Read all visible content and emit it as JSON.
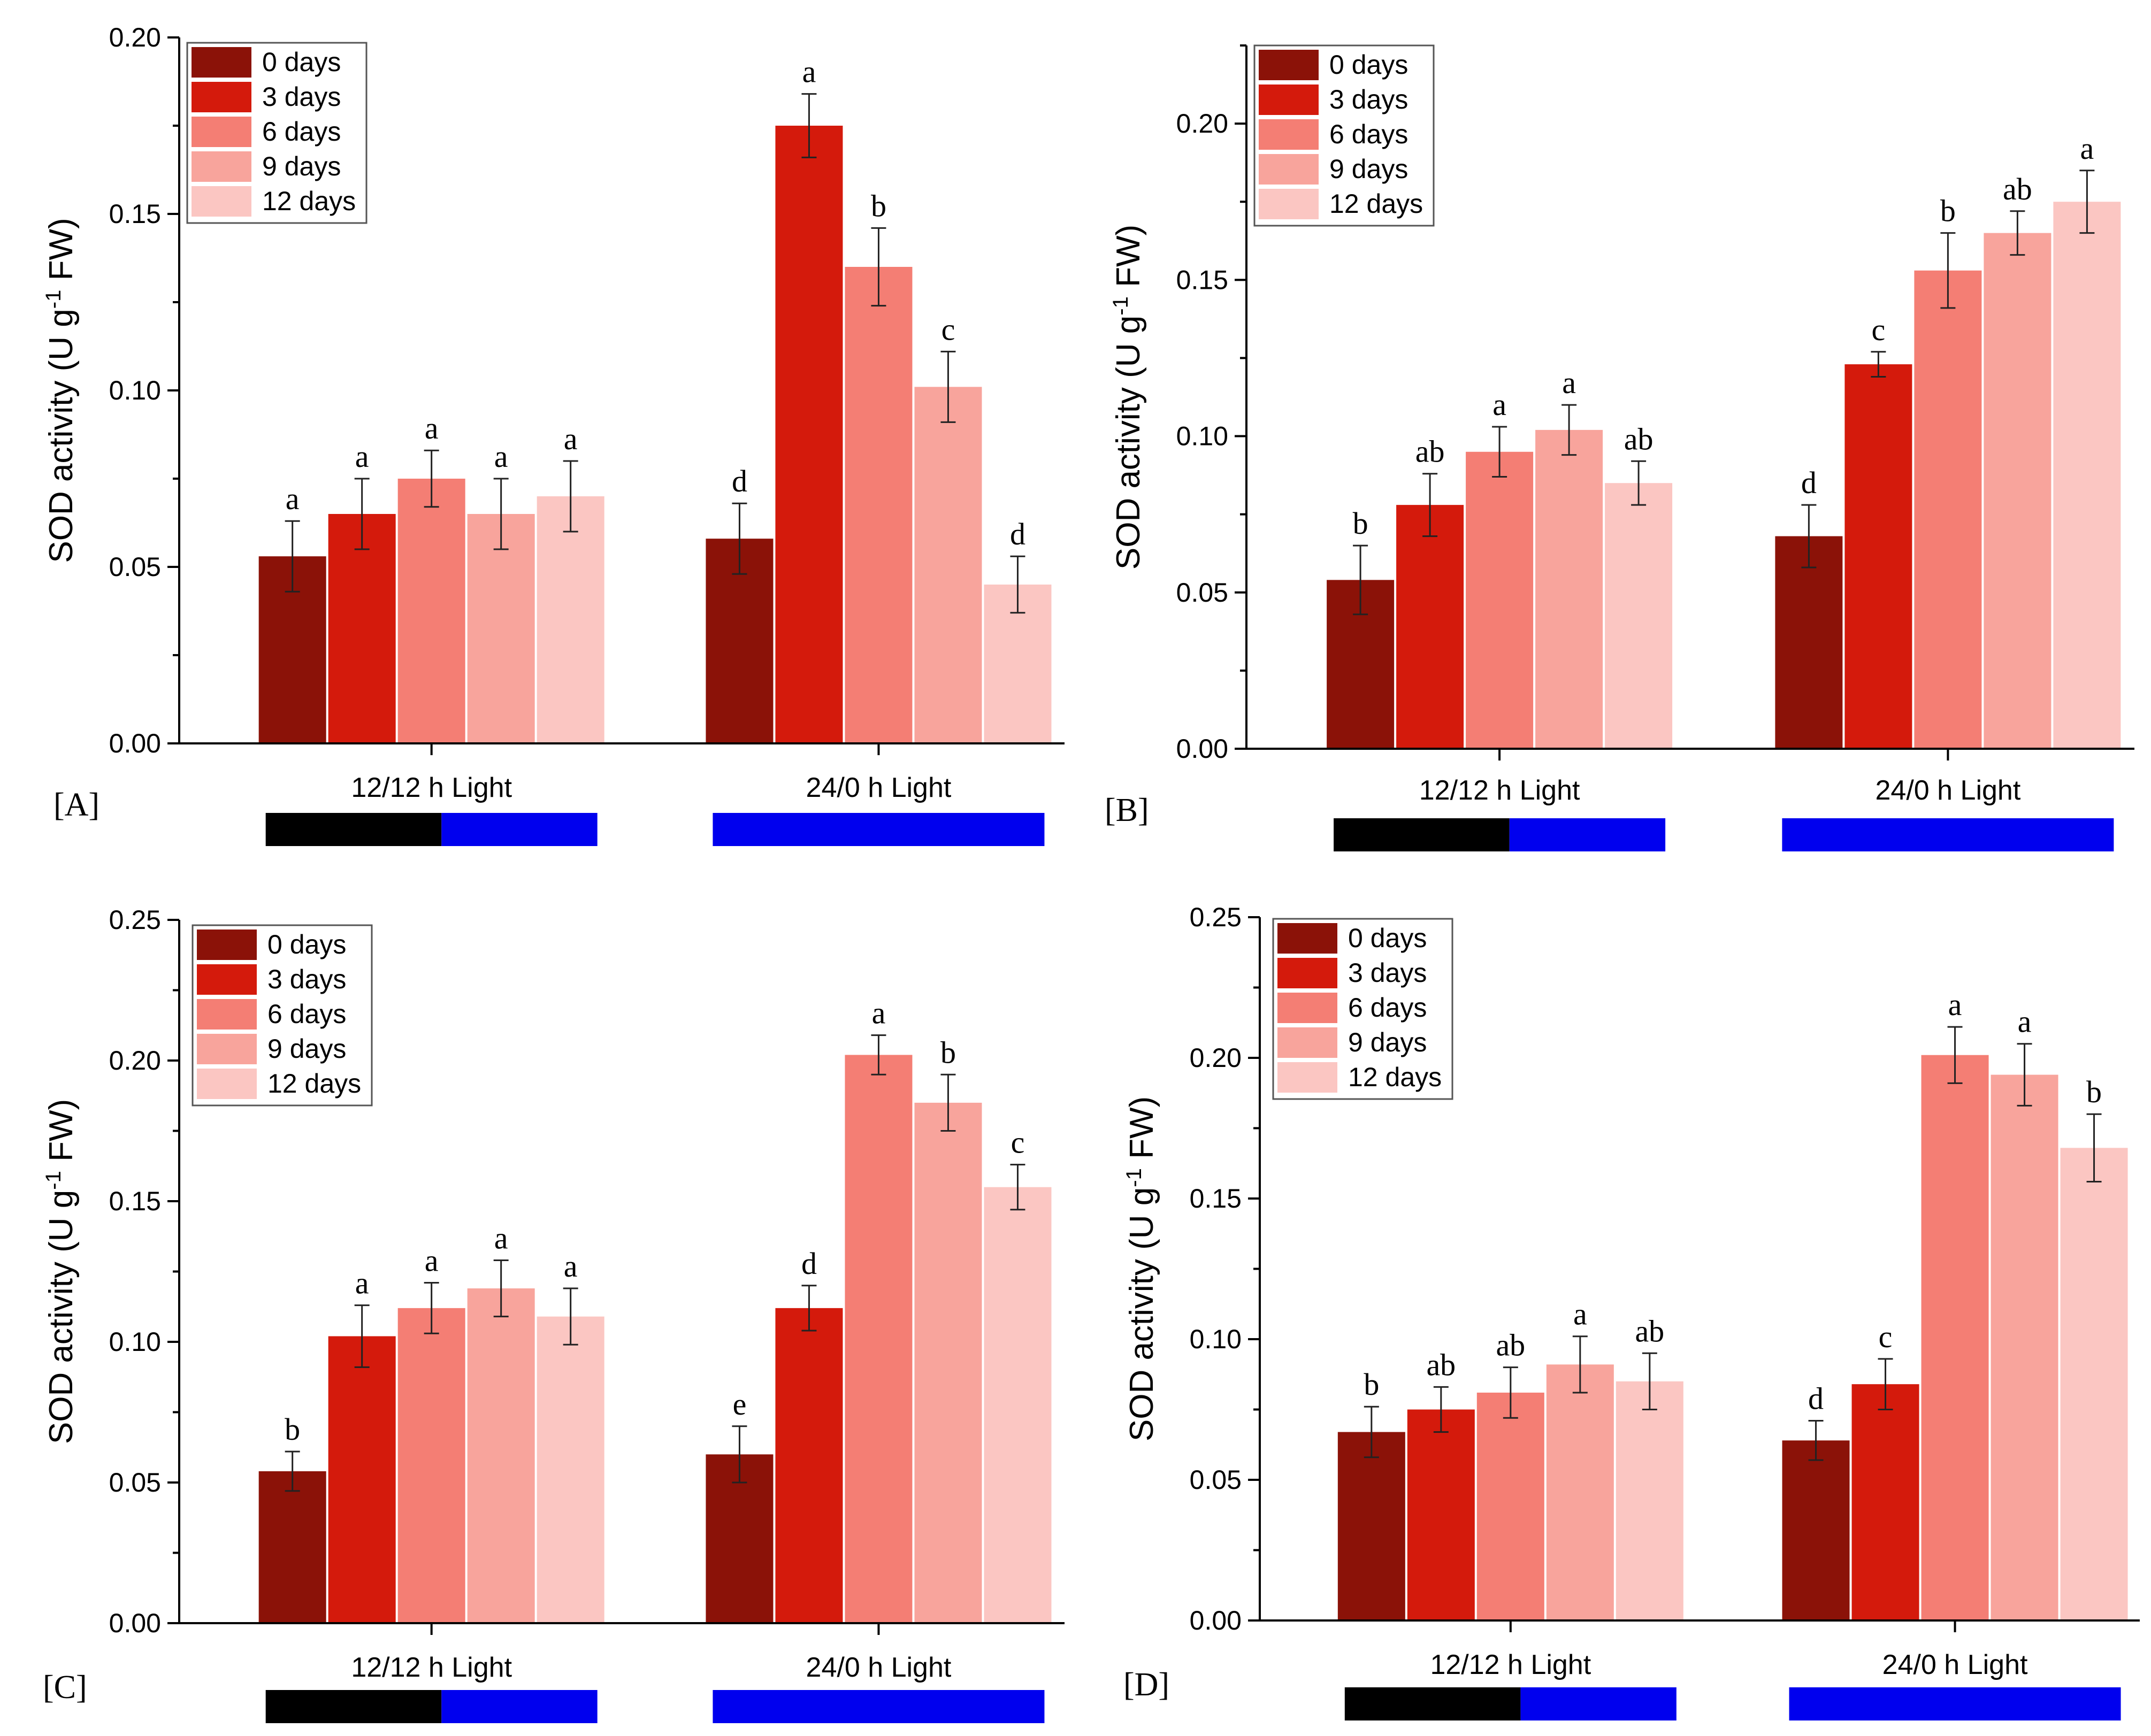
{
  "legend": [
    "0 days",
    "3 days",
    "6 days",
    "9 days",
    "12 days"
  ],
  "colors": [
    "#8b1208",
    "#d41a0c",
    "#f47e74",
    "#f8a49c",
    "#fbc6c2"
  ],
  "photoperiod_colors": {
    "dark": "#000000",
    "light": "#0000ee"
  },
  "chart_data": [
    {
      "type": "bar",
      "panel": "[A]",
      "ylabel": "SOD activity (U g-1 FW)",
      "ylim": [
        0,
        0.2
      ],
      "yticks": [
        "0.00",
        "0.05",
        "0.10",
        "0.15",
        "0.20"
      ],
      "categories": [
        "12/12 h Light",
        "24/0 h Light"
      ],
      "photoperiod_bars": [
        [
          0.53,
          0.47
        ],
        [
          0,
          1
        ]
      ],
      "series": [
        {
          "name": "0 days",
          "values": [
            0.053,
            0.058
          ],
          "errors": [
            0.01,
            0.01
          ],
          "letters": [
            "a",
            "d"
          ]
        },
        {
          "name": "3 days",
          "values": [
            0.065,
            0.175
          ],
          "errors": [
            0.01,
            0.009
          ],
          "letters": [
            "a",
            "a"
          ]
        },
        {
          "name": "6 days",
          "values": [
            0.075,
            0.135
          ],
          "errors": [
            0.008,
            0.011
          ],
          "letters": [
            "a",
            "b"
          ]
        },
        {
          "name": "9 days",
          "values": [
            0.065,
            0.101
          ],
          "errors": [
            0.01,
            0.01
          ],
          "letters": [
            "a",
            "c"
          ]
        },
        {
          "name": "12 days",
          "values": [
            0.07,
            0.045
          ],
          "errors": [
            0.01,
            0.008
          ],
          "letters": [
            "a",
            "d"
          ]
        }
      ]
    },
    {
      "type": "bar",
      "panel": "[B]",
      "ylabel": "SOD activity (U g-1 FW)",
      "ylim": [
        0,
        0.225
      ],
      "yticks": [
        "0.00",
        "0.05",
        "0.10",
        "0.15",
        "0.20"
      ],
      "categories": [
        "12/12 h Light",
        "24/0 h Light"
      ],
      "photoperiod_bars": [
        [
          0.53,
          0.47
        ],
        [
          0,
          1
        ]
      ],
      "series": [
        {
          "name": "0 days",
          "values": [
            0.054,
            0.068
          ],
          "errors": [
            0.011,
            0.01
          ],
          "letters": [
            "b",
            "d"
          ]
        },
        {
          "name": "3 days",
          "values": [
            0.078,
            0.123
          ],
          "errors": [
            0.01,
            0.004
          ],
          "letters": [
            "ab",
            "c"
          ]
        },
        {
          "name": "6 days",
          "values": [
            0.095,
            0.153
          ],
          "errors": [
            0.008,
            0.012
          ],
          "letters": [
            "a",
            "b"
          ]
        },
        {
          "name": "9 days",
          "values": [
            0.102,
            0.165
          ],
          "errors": [
            0.008,
            0.007
          ],
          "letters": [
            "a",
            "ab"
          ]
        },
        {
          "name": "12 days",
          "values": [
            0.085,
            0.175
          ],
          "errors": [
            0.007,
            0.01
          ],
          "letters": [
            "ab",
            "a"
          ]
        }
      ]
    },
    {
      "type": "bar",
      "panel": "[C]",
      "ylabel": "SOD activity (U g-1 FW)",
      "ylim": [
        0,
        0.25
      ],
      "yticks": [
        "0.00",
        "0.05",
        "0.10",
        "0.15",
        "0.20",
        "0.25"
      ],
      "categories": [
        "12/12 h Light",
        "24/0 h Light"
      ],
      "photoperiod_bars": [
        [
          0.53,
          0.47
        ],
        [
          0,
          1
        ]
      ],
      "series": [
        {
          "name": "0 days",
          "values": [
            0.054,
            0.06
          ],
          "errors": [
            0.007,
            0.01
          ],
          "letters": [
            "b",
            "e"
          ]
        },
        {
          "name": "3 days",
          "values": [
            0.102,
            0.112
          ],
          "errors": [
            0.011,
            0.008
          ],
          "letters": [
            "a",
            "d"
          ]
        },
        {
          "name": "6 days",
          "values": [
            0.112,
            0.202
          ],
          "errors": [
            0.009,
            0.007
          ],
          "letters": [
            "a",
            "a"
          ]
        },
        {
          "name": "9 days",
          "values": [
            0.119,
            0.185
          ],
          "errors": [
            0.01,
            0.01
          ],
          "letters": [
            "a",
            "b"
          ]
        },
        {
          "name": "12 days",
          "values": [
            0.109,
            0.155
          ],
          "errors": [
            0.01,
            0.008
          ],
          "letters": [
            "a",
            "c"
          ]
        }
      ]
    },
    {
      "type": "bar",
      "panel": "[D]",
      "ylabel": "SOD activity (U g-1 FW)",
      "ylim": [
        0,
        0.25
      ],
      "yticks": [
        "0.00",
        "0.05",
        "0.10",
        "0.15",
        "0.20",
        "0.25"
      ],
      "categories": [
        "12/12 h Light",
        "24/0 h Light"
      ],
      "photoperiod_bars": [
        [
          0.53,
          0.47
        ],
        [
          0,
          1
        ]
      ],
      "series": [
        {
          "name": "0 days",
          "values": [
            0.067,
            0.064
          ],
          "errors": [
            0.009,
            0.007
          ],
          "letters": [
            "b",
            "d"
          ]
        },
        {
          "name": "3 days",
          "values": [
            0.075,
            0.084
          ],
          "errors": [
            0.008,
            0.009
          ],
          "letters": [
            "ab",
            "c"
          ]
        },
        {
          "name": "6 days",
          "values": [
            0.081,
            0.201
          ],
          "errors": [
            0.009,
            0.01
          ],
          "letters": [
            "ab",
            "a"
          ]
        },
        {
          "name": "9 days",
          "values": [
            0.091,
            0.194
          ],
          "errors": [
            0.01,
            0.011
          ],
          "letters": [
            "a",
            "a"
          ]
        },
        {
          "name": "12 days",
          "values": [
            0.085,
            0.168
          ],
          "errors": [
            0.01,
            0.012
          ],
          "letters": [
            "ab",
            "b"
          ]
        }
      ]
    }
  ]
}
